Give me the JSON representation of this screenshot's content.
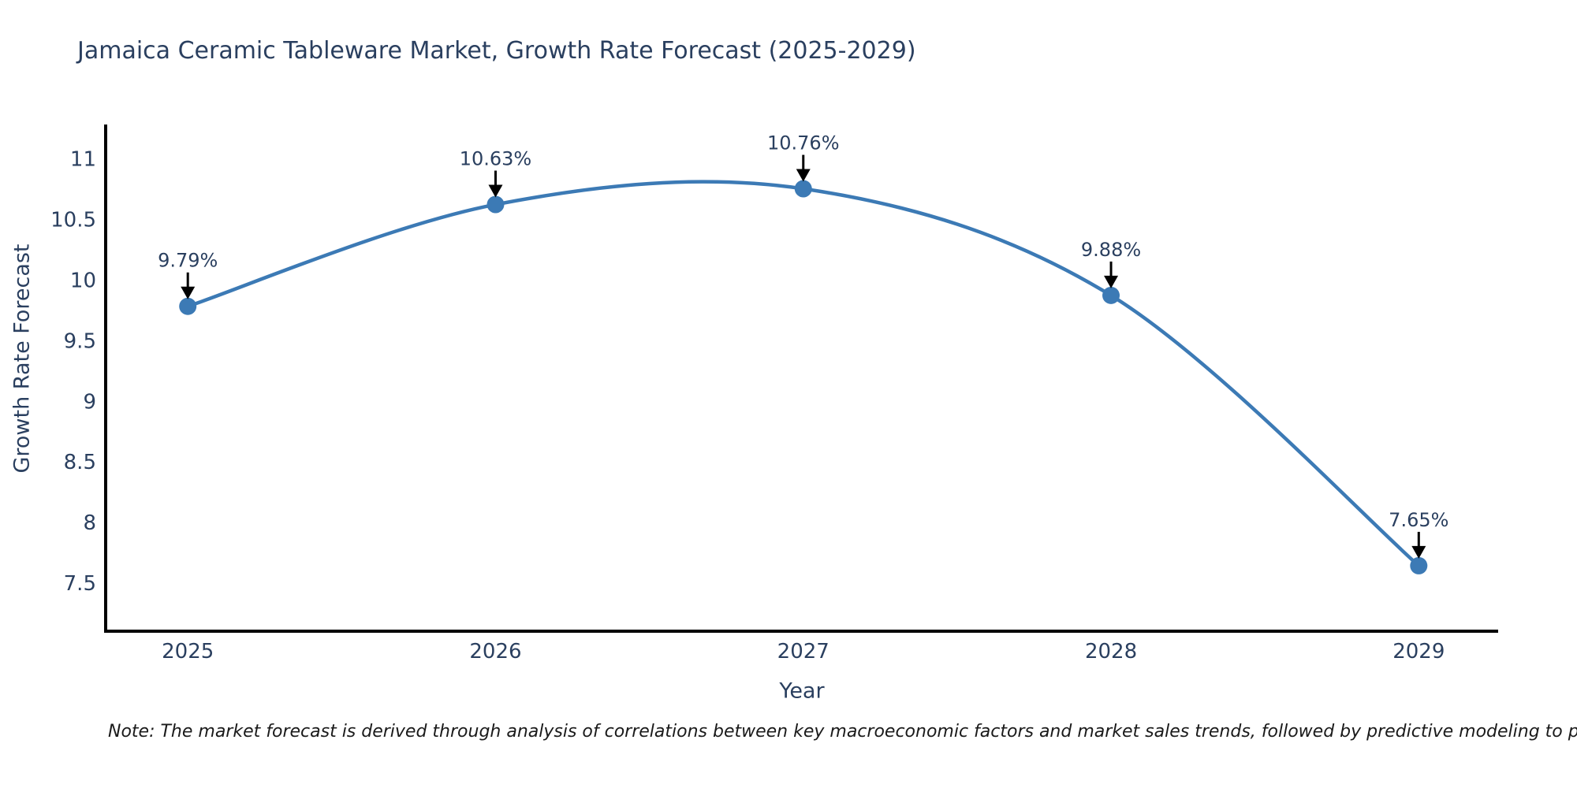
{
  "chart_data": {
    "type": "line",
    "title": "Jamaica Ceramic Tableware Market, Growth Rate Forecast (2025-2029)",
    "xlabel": "Year",
    "ylabel": "Growth Rate Forecast",
    "x": [
      2025,
      2026,
      2027,
      2028,
      2029
    ],
    "values": [
      9.79,
      10.63,
      10.76,
      9.88,
      7.65
    ],
    "point_labels": [
      "9.79%",
      "10.63%",
      "10.76%",
      "9.88%",
      "7.65%"
    ],
    "x_tick_labels": [
      "2025",
      "2026",
      "2027",
      "2028",
      "2029"
    ],
    "y_tick_values": [
      7.5,
      8,
      8.5,
      9,
      9.5,
      10,
      10.5,
      11
    ],
    "y_tick_labels": [
      "7.5",
      "8",
      "8.5",
      "9",
      "9.5",
      "10",
      "10.5",
      "11"
    ],
    "xlim": [
      2024.733,
      2029.258
    ],
    "ylim": [
      7.11,
      11.29
    ],
    "grid": false,
    "legend": false,
    "line_shape": "spline",
    "line_color": "#3c7ab5",
    "marker_color": "#3c7ab5",
    "axis_color": "#000000",
    "text_color": "#2a3f5f",
    "annotation_arrow_color": "#000000"
  },
  "note": "Note: The market forecast is derived through analysis of correlations between key macroeconomic factors and market sales trends, followed by predictive modeling to project future sales."
}
